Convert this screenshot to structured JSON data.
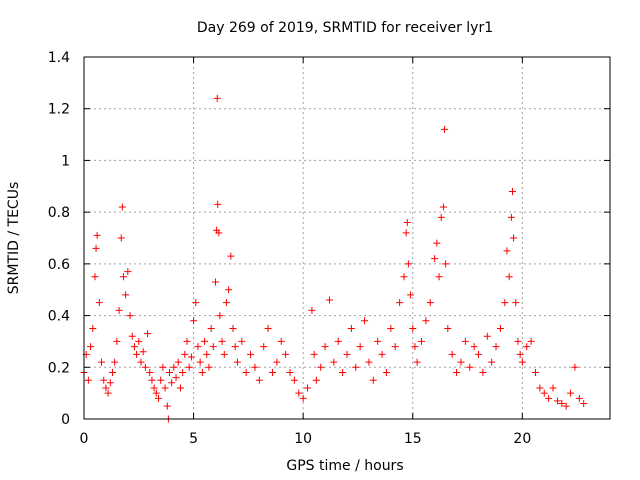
{
  "chart_data": {
    "type": "scatter",
    "title": "Day 269 of 2019, SRMTID for receiver lyr1",
    "xlabel": "GPS time / hours",
    "ylabel": "SRMTID / TECUs",
    "xlim": [
      0,
      24
    ],
    "ylim": [
      0,
      1.4
    ],
    "x_ticks": [
      0,
      5,
      10,
      15,
      20
    ],
    "x_tick_labels": [
      "0",
      "5",
      "10",
      "15",
      "20"
    ],
    "y_ticks": [
      0,
      0.2,
      0.4,
      0.6,
      0.8,
      1,
      1.2,
      1.4
    ],
    "y_tick_labels": [
      "0",
      "0.2",
      "0.4",
      "0.6",
      "0.8",
      "1",
      "1.2",
      "1.4"
    ],
    "grid": true,
    "marker": "+",
    "color": "#ff0000",
    "series": [
      {
        "name": "SRMTID",
        "points": [
          [
            0.0,
            0.18
          ],
          [
            0.1,
            0.25
          ],
          [
            0.2,
            0.15
          ],
          [
            0.3,
            0.28
          ],
          [
            0.4,
            0.35
          ],
          [
            0.5,
            0.55
          ],
          [
            0.55,
            0.66
          ],
          [
            0.6,
            0.71
          ],
          [
            0.7,
            0.45
          ],
          [
            0.8,
            0.22
          ],
          [
            0.9,
            0.15
          ],
          [
            1.0,
            0.12
          ],
          [
            1.1,
            0.1
          ],
          [
            1.2,
            0.14
          ],
          [
            1.3,
            0.18
          ],
          [
            1.4,
            0.22
          ],
          [
            1.5,
            0.3
          ],
          [
            1.6,
            0.42
          ],
          [
            1.7,
            0.7
          ],
          [
            1.75,
            0.82
          ],
          [
            1.8,
            0.55
          ],
          [
            1.9,
            0.48
          ],
          [
            2.0,
            0.57
          ],
          [
            2.1,
            0.4
          ],
          [
            2.2,
            0.32
          ],
          [
            2.3,
            0.28
          ],
          [
            2.4,
            0.25
          ],
          [
            2.5,
            0.3
          ],
          [
            2.6,
            0.22
          ],
          [
            2.7,
            0.26
          ],
          [
            2.8,
            0.2
          ],
          [
            2.9,
            0.33
          ],
          [
            3.0,
            0.18
          ],
          [
            3.1,
            0.15
          ],
          [
            3.2,
            0.12
          ],
          [
            3.3,
            0.1
          ],
          [
            3.4,
            0.08
          ],
          [
            3.5,
            0.15
          ],
          [
            3.6,
            0.2
          ],
          [
            3.7,
            0.12
          ],
          [
            3.8,
            0.05
          ],
          [
            3.85,
            0.0
          ],
          [
            3.9,
            0.18
          ],
          [
            4.0,
            0.14
          ],
          [
            4.1,
            0.2
          ],
          [
            4.2,
            0.16
          ],
          [
            4.3,
            0.22
          ],
          [
            4.4,
            0.12
          ],
          [
            4.5,
            0.18
          ],
          [
            4.6,
            0.25
          ],
          [
            4.7,
            0.3
          ],
          [
            4.8,
            0.2
          ],
          [
            4.9,
            0.24
          ],
          [
            5.0,
            0.38
          ],
          [
            5.1,
            0.45
          ],
          [
            5.2,
            0.28
          ],
          [
            5.3,
            0.22
          ],
          [
            5.4,
            0.18
          ],
          [
            5.5,
            0.3
          ],
          [
            5.6,
            0.25
          ],
          [
            5.7,
            0.2
          ],
          [
            5.8,
            0.35
          ],
          [
            5.9,
            0.28
          ],
          [
            6.0,
            0.53
          ],
          [
            6.05,
            0.73
          ],
          [
            6.08,
            1.24
          ],
          [
            6.1,
            0.83
          ],
          [
            6.15,
            0.72
          ],
          [
            6.2,
            0.4
          ],
          [
            6.3,
            0.3
          ],
          [
            6.4,
            0.25
          ],
          [
            6.5,
            0.45
          ],
          [
            6.6,
            0.5
          ],
          [
            6.7,
            0.63
          ],
          [
            6.8,
            0.35
          ],
          [
            6.9,
            0.28
          ],
          [
            7.0,
            0.22
          ],
          [
            7.2,
            0.3
          ],
          [
            7.4,
            0.18
          ],
          [
            7.6,
            0.25
          ],
          [
            7.8,
            0.2
          ],
          [
            8.0,
            0.15
          ],
          [
            8.2,
            0.28
          ],
          [
            8.4,
            0.35
          ],
          [
            8.6,
            0.18
          ],
          [
            8.8,
            0.22
          ],
          [
            9.0,
            0.3
          ],
          [
            9.2,
            0.25
          ],
          [
            9.4,
            0.18
          ],
          [
            9.6,
            0.15
          ],
          [
            9.8,
            0.1
          ],
          [
            10.0,
            0.08
          ],
          [
            10.2,
            0.12
          ],
          [
            10.4,
            0.42
          ],
          [
            10.5,
            0.25
          ],
          [
            10.6,
            0.15
          ],
          [
            10.8,
            0.2
          ],
          [
            11.0,
            0.28
          ],
          [
            11.2,
            0.46
          ],
          [
            11.4,
            0.22
          ],
          [
            11.6,
            0.3
          ],
          [
            11.8,
            0.18
          ],
          [
            12.0,
            0.25
          ],
          [
            12.2,
            0.35
          ],
          [
            12.4,
            0.2
          ],
          [
            12.6,
            0.28
          ],
          [
            12.8,
            0.38
          ],
          [
            13.0,
            0.22
          ],
          [
            13.2,
            0.15
          ],
          [
            13.4,
            0.3
          ],
          [
            13.6,
            0.25
          ],
          [
            13.8,
            0.18
          ],
          [
            14.0,
            0.35
          ],
          [
            14.2,
            0.28
          ],
          [
            14.4,
            0.45
          ],
          [
            14.6,
            0.55
          ],
          [
            14.7,
            0.72
          ],
          [
            14.75,
            0.76
          ],
          [
            14.8,
            0.6
          ],
          [
            14.9,
            0.48
          ],
          [
            15.0,
            0.35
          ],
          [
            15.1,
            0.28
          ],
          [
            15.2,
            0.22
          ],
          [
            15.4,
            0.3
          ],
          [
            15.6,
            0.38
          ],
          [
            15.8,
            0.45
          ],
          [
            16.0,
            0.62
          ],
          [
            16.1,
            0.68
          ],
          [
            16.2,
            0.55
          ],
          [
            16.3,
            0.78
          ],
          [
            16.4,
            0.82
          ],
          [
            16.45,
            1.12
          ],
          [
            16.5,
            0.6
          ],
          [
            16.6,
            0.35
          ],
          [
            16.8,
            0.25
          ],
          [
            17.0,
            0.18
          ],
          [
            17.2,
            0.22
          ],
          [
            17.4,
            0.3
          ],
          [
            17.6,
            0.2
          ],
          [
            17.8,
            0.28
          ],
          [
            18.0,
            0.25
          ],
          [
            18.2,
            0.18
          ],
          [
            18.4,
            0.32
          ],
          [
            18.6,
            0.22
          ],
          [
            18.8,
            0.28
          ],
          [
            19.0,
            0.35
          ],
          [
            19.2,
            0.45
          ],
          [
            19.3,
            0.65
          ],
          [
            19.4,
            0.55
          ],
          [
            19.5,
            0.78
          ],
          [
            19.55,
            0.88
          ],
          [
            19.6,
            0.7
          ],
          [
            19.7,
            0.45
          ],
          [
            19.8,
            0.3
          ],
          [
            19.9,
            0.25
          ],
          [
            20.0,
            0.22
          ],
          [
            20.2,
            0.28
          ],
          [
            20.4,
            0.3
          ],
          [
            20.6,
            0.18
          ],
          [
            20.8,
            0.12
          ],
          [
            21.0,
            0.1
          ],
          [
            21.2,
            0.08
          ],
          [
            21.4,
            0.12
          ],
          [
            21.6,
            0.07
          ],
          [
            21.8,
            0.06
          ],
          [
            22.0,
            0.05
          ],
          [
            22.2,
            0.1
          ],
          [
            22.4,
            0.2
          ],
          [
            22.6,
            0.08
          ],
          [
            22.8,
            0.06
          ]
        ]
      }
    ]
  }
}
